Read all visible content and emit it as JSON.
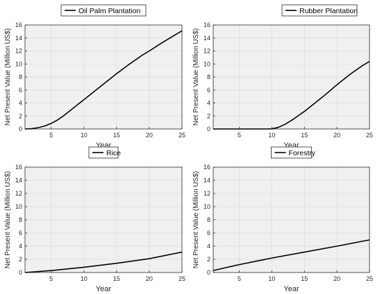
{
  "chart_data": [
    {
      "type": "line",
      "legend": "Oil Palm Plantation",
      "xlabel": "Year",
      "ylabel": "Net Present Value (Million US$)",
      "xlim": [
        1,
        25
      ],
      "ylim": [
        0,
        16
      ],
      "xticks": [
        5,
        10,
        15,
        20,
        25
      ],
      "yticks": [
        0,
        2,
        4,
        6,
        8,
        10,
        12,
        14,
        16
      ],
      "grid": true,
      "legend_position": "top-center",
      "series_color": "#000000",
      "x": [
        1,
        2,
        3,
        4,
        5,
        6,
        7,
        8,
        9,
        10,
        11,
        12,
        13,
        14,
        15,
        16,
        17,
        18,
        19,
        20,
        21,
        22,
        23,
        24,
        25
      ],
      "y": [
        0,
        0.05,
        0.2,
        0.45,
        0.85,
        1.4,
        2.1,
        2.9,
        3.7,
        4.5,
        5.3,
        6.1,
        6.9,
        7.7,
        8.5,
        9.25,
        10.0,
        10.7,
        11.4,
        12.0,
        12.65,
        13.3,
        13.9,
        14.5,
        15.1
      ]
    },
    {
      "type": "line",
      "legend": "Rubber Plantation",
      "xlabel": "Year",
      "ylabel": "Net Present Value (Million US$)",
      "xlim": [
        1,
        25
      ],
      "ylim": [
        0,
        16
      ],
      "xticks": [
        5,
        10,
        15,
        20,
        25
      ],
      "yticks": [
        0,
        2,
        4,
        6,
        8,
        10,
        12,
        14,
        16
      ],
      "grid": true,
      "legend_position": "top-right",
      "series_color": "#000000",
      "x": [
        1,
        2,
        3,
        4,
        5,
        6,
        7,
        8,
        9,
        10,
        11,
        12,
        13,
        14,
        15,
        16,
        17,
        18,
        19,
        20,
        21,
        22,
        23,
        24,
        25
      ],
      "y": [
        0,
        0,
        0,
        0,
        0,
        0,
        0,
        0,
        0,
        0.02,
        0.25,
        0.7,
        1.3,
        2.0,
        2.7,
        3.5,
        4.3,
        5.1,
        5.95,
        6.8,
        7.6,
        8.4,
        9.1,
        9.8,
        10.4
      ]
    },
    {
      "type": "line",
      "legend": "Rice",
      "xlabel": "Year",
      "ylabel": "Net Present Value (Million US$)",
      "xlim": [
        1,
        25
      ],
      "ylim": [
        0,
        16
      ],
      "xticks": [
        5,
        10,
        15,
        20,
        25
      ],
      "yticks": [
        0,
        2,
        4,
        6,
        8,
        10,
        12,
        14,
        16
      ],
      "grid": true,
      "legend_position": "top-center",
      "series_color": "#000000",
      "x": [
        1,
        5,
        10,
        15,
        20,
        25
      ],
      "y": [
        0,
        0.3,
        0.8,
        1.4,
        2.1,
        3.1
      ]
    },
    {
      "type": "line",
      "legend": "Forestry",
      "xlabel": "Year",
      "ylabel": "Net Present Value (Million US$)",
      "xlim": [
        1,
        25
      ],
      "ylim": [
        0,
        16
      ],
      "xticks": [
        5,
        10,
        15,
        20,
        25
      ],
      "yticks": [
        0,
        2,
        4,
        6,
        8,
        10,
        12,
        14,
        16
      ],
      "grid": true,
      "legend_position": "top-center",
      "series_color": "#000000",
      "x": [
        1,
        5,
        10,
        15,
        20,
        25
      ],
      "y": [
        0.3,
        1.2,
        2.2,
        3.1,
        4.0,
        4.95
      ]
    }
  ]
}
